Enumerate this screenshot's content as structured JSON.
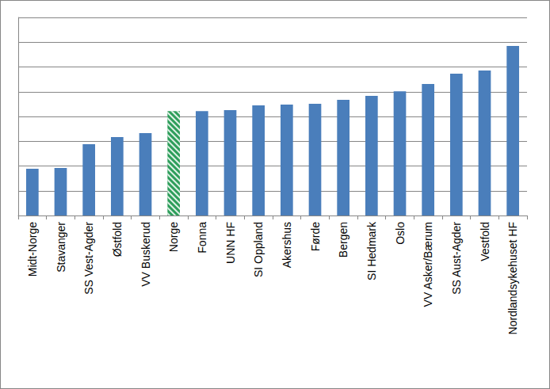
{
  "chart_data": {
    "type": "bar",
    "categories": [
      "Midt-Norge",
      "Stavanger",
      "SS Vest-Agder",
      "Østfold",
      "VV Buskerud",
      "Norge",
      "Fonna",
      "UNN HF",
      "SI Oppland",
      "Akershus",
      "Førde",
      "Bergen",
      "SI Hedmark",
      "Oslo",
      "VV Asker/Bærum",
      "SS Aust-Agder",
      "Vestfold",
      "Nordlandsykehuset HF"
    ],
    "values": [
      1.89,
      1.92,
      2.88,
      3.17,
      3.33,
      4.22,
      4.22,
      4.26,
      4.45,
      4.48,
      4.51,
      4.67,
      4.83,
      5.02,
      5.31,
      5.73,
      5.86,
      6.85
    ],
    "colors": [
      "#4a7ebb",
      "#4a7ebb",
      "#4a7ebb",
      "#4a7ebb",
      "#4a7ebb",
      "#2e9e5b",
      "#4a7ebb",
      "#4a7ebb",
      "#4a7ebb",
      "#4a7ebb",
      "#4a7ebb",
      "#4a7ebb",
      "#4a7ebb",
      "#4a7ebb",
      "#4a7ebb",
      "#4a7ebb",
      "#4a7ebb",
      "#4a7ebb"
    ],
    "ylim": [
      0,
      8
    ],
    "yticks": [
      0,
      1,
      2,
      3,
      4,
      5,
      6,
      7,
      8
    ],
    "grid": true,
    "tick_labels": "x"
  }
}
